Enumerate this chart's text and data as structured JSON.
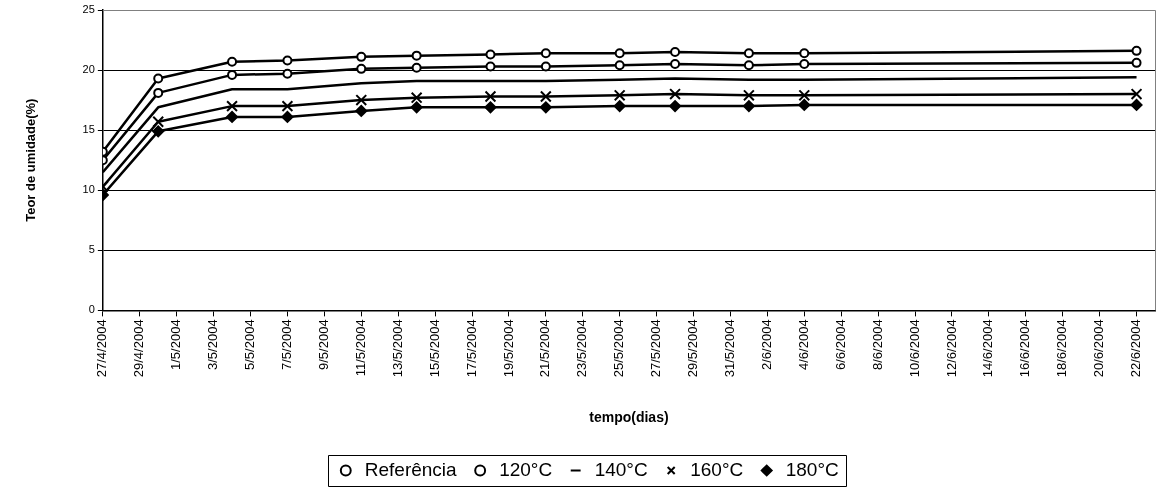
{
  "chart_data": {
    "type": "line",
    "xlabel": "tempo(dias)",
    "ylabel": "Teor de umidade(%)",
    "x": [
      "2004-04-27",
      "2004-04-30",
      "2004-05-04",
      "2004-05-07",
      "2004-05-11",
      "2004-05-14",
      "2004-05-18",
      "2004-05-21",
      "2004-05-25",
      "2004-05-28",
      "2004-06-01",
      "2004-06-04",
      "2004-06-22"
    ],
    "series": [
      {
        "name": "Referência",
        "color": "#000000",
        "marker": "circle",
        "values": [
          13.2,
          19.3,
          20.7,
          20.8,
          21.1,
          21.2,
          21.3,
          21.4,
          21.4,
          21.5,
          21.4,
          21.4,
          21.6
        ]
      },
      {
        "name": "120°C",
        "color": "#000000",
        "marker": "circle",
        "values": [
          12.5,
          18.1,
          19.6,
          19.7,
          20.1,
          20.2,
          20.3,
          20.3,
          20.4,
          20.5,
          20.4,
          20.5,
          20.6
        ]
      },
      {
        "name": "140°C",
        "color": "#000000",
        "marker": "none",
        "values": [
          11.5,
          16.9,
          18.4,
          18.4,
          18.9,
          19.1,
          19.1,
          19.1,
          19.2,
          19.3,
          19.2,
          19.2,
          19.4
        ]
      },
      {
        "name": "160°C",
        "color": "#000000",
        "marker": "cross",
        "values": [
          10.3,
          15.7,
          17.0,
          17.0,
          17.5,
          17.7,
          17.8,
          17.8,
          17.9,
          18.0,
          17.9,
          17.9,
          18.0
        ]
      },
      {
        "name": "180°C",
        "color": "#000000",
        "marker": "diamond",
        "values": [
          9.6,
          14.9,
          16.1,
          16.1,
          16.6,
          16.9,
          16.9,
          16.9,
          17.0,
          17.0,
          17.0,
          17.1,
          17.1
        ]
      }
    ],
    "xlim": [
      "2004-04-27",
      "2004-06-23"
    ],
    "xticks": [
      {
        "value": "2004-04-27",
        "label": "27/4/2004"
      },
      {
        "value": "2004-04-29",
        "label": "29/4/2004"
      },
      {
        "value": "2004-05-01",
        "label": "1/5/2004"
      },
      {
        "value": "2004-05-03",
        "label": "3/5/2004"
      },
      {
        "value": "2004-05-05",
        "label": "5/5/2004"
      },
      {
        "value": "2004-05-07",
        "label": "7/5/2004"
      },
      {
        "value": "2004-05-09",
        "label": "9/5/2004"
      },
      {
        "value": "2004-05-11",
        "label": "11/5/2004"
      },
      {
        "value": "2004-05-13",
        "label": "13/5/2004"
      },
      {
        "value": "2004-05-15",
        "label": "15/5/2004"
      },
      {
        "value": "2004-05-17",
        "label": "17/5/2004"
      },
      {
        "value": "2004-05-19",
        "label": "19/5/2004"
      },
      {
        "value": "2004-05-21",
        "label": "21/5/2004"
      },
      {
        "value": "2004-05-23",
        "label": "23/5/2004"
      },
      {
        "value": "2004-05-25",
        "label": "25/5/2004"
      },
      {
        "value": "2004-05-27",
        "label": "27/5/2004"
      },
      {
        "value": "2004-05-29",
        "label": "29/5/2004"
      },
      {
        "value": "2004-05-31",
        "label": "31/5/2004"
      },
      {
        "value": "2004-06-02",
        "label": "2/6/2004"
      },
      {
        "value": "2004-06-04",
        "label": "4/6/2004"
      },
      {
        "value": "2004-06-06",
        "label": "6/6/2004"
      },
      {
        "value": "2004-06-08",
        "label": "8/6/2004"
      },
      {
        "value": "2004-06-10",
        "label": "10/6/2004"
      },
      {
        "value": "2004-06-12",
        "label": "12/6/2004"
      },
      {
        "value": "2004-06-14",
        "label": "14/6/2004"
      },
      {
        "value": "2004-06-16",
        "label": "16/6/2004"
      },
      {
        "value": "2004-06-18",
        "label": "18/6/2004"
      },
      {
        "value": "2004-06-20",
        "label": "20/6/2004"
      },
      {
        "value": "2004-06-22",
        "label": "22/6/2004"
      }
    ],
    "ylim": [
      0,
      25
    ],
    "yticks": [
      0,
      5,
      10,
      15,
      20,
      25
    ],
    "grid": "y",
    "legend": "bottom",
    "line_style": "solid"
  }
}
